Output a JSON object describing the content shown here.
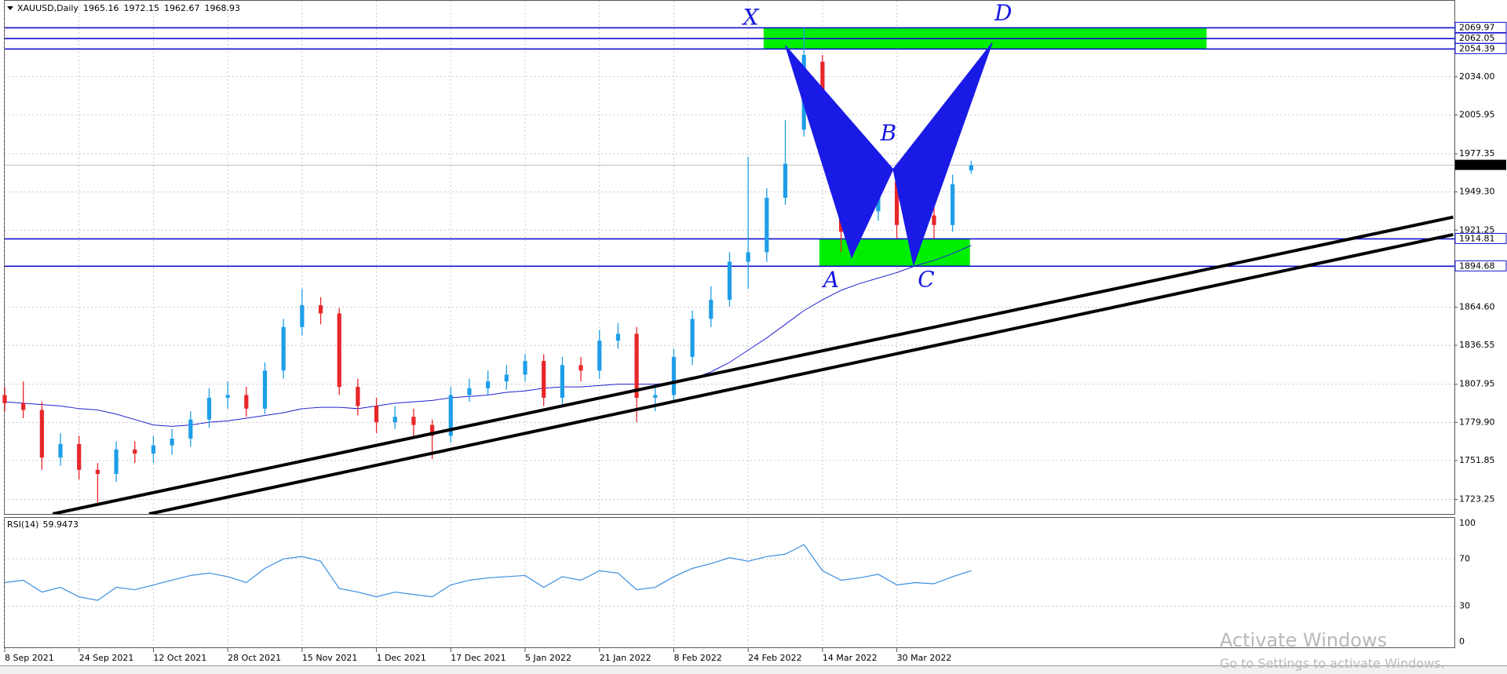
{
  "chart_data": [
    {
      "type": "candlestick",
      "title": "XAUUSD,Daily",
      "x": [
        0,
        3,
        6,
        9,
        12,
        15,
        18,
        21,
        24,
        27,
        30,
        33,
        36,
        39,
        42,
        45,
        48,
        51,
        54,
        57,
        60,
        63,
        66,
        69,
        72,
        75,
        78,
        81,
        84,
        87,
        90,
        93,
        96,
        99,
        102,
        105,
        108,
        111,
        114,
        117,
        120,
        123,
        126,
        129,
        132,
        135,
        138,
        141,
        144,
        147,
        150,
        153,
        156
      ],
      "open": [
        1800,
        1794,
        1789,
        1754,
        1764,
        1745,
        1742,
        1760,
        1757,
        1763,
        1768,
        1782,
        1798,
        1800,
        1790,
        1818,
        1850,
        1866,
        1860,
        1806,
        1792,
        1780,
        1784,
        1778,
        1770,
        1800,
        1805,
        1810,
        1815,
        1825,
        1798,
        1822,
        1818,
        1840,
        1845,
        1798,
        1800,
        1828,
        1856,
        1870,
        1898,
        1905,
        1945,
        1995,
        2045,
        1998,
        1920,
        1935,
        1957,
        1925,
        1932,
        1925,
        1965.16
      ],
      "high": [
        1806,
        1810,
        1795,
        1772,
        1770,
        1750,
        1766,
        1766,
        1770,
        1775,
        1788,
        1805,
        1810,
        1806,
        1824,
        1856,
        1878,
        1872,
        1864,
        1812,
        1798,
        1792,
        1790,
        1782,
        1806,
        1812,
        1818,
        1822,
        1830,
        1830,
        1828,
        1828,
        1848,
        1853,
        1850,
        1808,
        1834,
        1862,
        1880,
        1905,
        1975,
        1952,
        2002,
        2070,
        2050,
        2002,
        1948,
        1966,
        1962,
        1940,
        1938,
        1962,
        1972.15
      ],
      "low": [
        1788,
        1783,
        1745,
        1748,
        1738,
        1721,
        1736,
        1750,
        1750,
        1756,
        1762,
        1776,
        1790,
        1784,
        1786,
        1812,
        1844,
        1852,
        1800,
        1785,
        1772,
        1775,
        1770,
        1753,
        1765,
        1795,
        1800,
        1804,
        1810,
        1792,
        1792,
        1810,
        1812,
        1834,
        1780,
        1788,
        1796,
        1822,
        1850,
        1865,
        1878,
        1898,
        1940,
        1990,
        1985,
        1905,
        1912,
        1928,
        1915,
        1915,
        1915,
        1920,
        1962.67
      ],
      "close": [
        1794,
        1789,
        1754,
        1764,
        1745,
        1742,
        1760,
        1757,
        1763,
        1768,
        1782,
        1798,
        1800,
        1790,
        1818,
        1850,
        1866,
        1860,
        1806,
        1792,
        1780,
        1784,
        1778,
        1770,
        1800,
        1805,
        1810,
        1815,
        1825,
        1798,
        1822,
        1818,
        1840,
        1845,
        1798,
        1800,
        1828,
        1856,
        1870,
        1898,
        1905,
        1945,
        1970,
        2050,
        1998,
        1920,
        1935,
        1957,
        1925,
        1932,
        1925,
        1955,
        1968.93
      ],
      "up_color": "#1e9ee8",
      "down_color": "#e8262a",
      "ma": {
        "color": "#2020d0",
        "values": [
          1795,
          1794,
          1793,
          1792,
          1790,
          1789,
          1786,
          1782,
          1778,
          1777,
          1778,
          1780,
          1781,
          1783,
          1785,
          1787,
          1790,
          1791,
          1791,
          1790,
          1792,
          1794,
          1795,
          1796,
          1798,
          1799,
          1800,
          1802,
          1803,
          1805,
          1806,
          1806,
          1807,
          1808,
          1808,
          1808,
          1809,
          1812,
          1817,
          1824,
          1833,
          1842,
          1852,
          1862,
          1870,
          1877,
          1882,
          1886,
          1890,
          1895,
          1899,
          1904,
          1910
        ]
      },
      "xlim": [
        0,
        234
      ],
      "ylim": [
        1712.6,
        2090.4
      ],
      "xticks": [
        {
          "value": 0,
          "label": "8 Sep 2021"
        },
        {
          "value": 12,
          "label": "24 Sep 2021"
        },
        {
          "value": 24,
          "label": "12 Oct 2021"
        },
        {
          "value": 36,
          "label": "28 Oct 2021"
        },
        {
          "value": 48,
          "label": "15 Nov 2021"
        },
        {
          "value": 60,
          "label": "1 Dec 2021"
        },
        {
          "value": 72,
          "label": "17 Dec 2021"
        },
        {
          "value": 84,
          "label": "5 Jan 2022"
        },
        {
          "value": 96,
          "label": "21 Jan 2022"
        },
        {
          "value": 108,
          "label": "8 Feb 2022"
        },
        {
          "value": 120,
          "label": "24 Feb 2022"
        },
        {
          "value": 132,
          "label": "14 Mar 2022"
        },
        {
          "value": 144,
          "label": "30 Mar 2022"
        }
      ],
      "yticks": [
        {
          "value": 2034,
          "label": "2034.00"
        },
        2005.95,
        1977.35,
        {
          "value": 1949.3,
          "label": "1949.30"
        },
        1921.25,
        {
          "value": 1864.6,
          "label": "1864.60"
        },
        1836.55,
        1807.95,
        {
          "value": 1779.9,
          "label": "1779.90"
        },
        1751.85,
        1723.25
      ],
      "grid": true,
      "levels": [
        2069.97,
        2062.05,
        2054.39,
        1914.81,
        1894.68
      ],
      "level_color": "#1010d0",
      "current_price": 1968.93,
      "zones": [
        {
          "x": [
            122.5,
            194
          ],
          "y": [
            2054.39,
            2069.97
          ]
        },
        {
          "x": [
            131.5,
            155.8
          ],
          "y": [
            1894.68,
            1914.81
          ]
        }
      ],
      "zone_color": "#00ee00",
      "pattern": {
        "color": "#1a1ae6",
        "points": [
          {
            "label": "X",
            "x": 126,
            "y": 2057
          },
          {
            "label": "A",
            "x": 136.7,
            "y": 1901
          },
          {
            "label": "B",
            "x": 143.4,
            "y": 1966
          },
          {
            "label": "C",
            "x": 146.7,
            "y": 1895.5
          },
          {
            "label": "D",
            "x": 159.4,
            "y": 2059
          }
        ]
      },
      "trendlines": [
        {
          "x": [
            7.75,
            233.8
          ],
          "y": [
            1712.6,
            1930.8
          ]
        },
        {
          "x": [
            23.3,
            233.8
          ],
          "y": [
            1712.6,
            1918
          ]
        }
      ]
    },
    {
      "type": "line",
      "title": "RSI(14)",
      "value": 59.9473,
      "color": "#3a8ee0",
      "x": [
        0,
        3,
        6,
        9,
        12,
        15,
        18,
        21,
        24,
        27,
        30,
        33,
        36,
        39,
        42,
        45,
        48,
        51,
        54,
        57,
        60,
        63,
        66,
        69,
        72,
        75,
        78,
        81,
        84,
        87,
        90,
        93,
        96,
        99,
        102,
        105,
        108,
        111,
        114,
        117,
        120,
        123,
        126,
        129,
        132,
        135,
        138,
        141,
        144,
        147,
        150,
        153,
        156
      ],
      "values": [
        50,
        52,
        42,
        46,
        38,
        35,
        46,
        44,
        48,
        52,
        56,
        58,
        55,
        50,
        62,
        70,
        72,
        68,
        45,
        42,
        38,
        42,
        40,
        38,
        48,
        52,
        54,
        55,
        56,
        46,
        55,
        52,
        60,
        58,
        44,
        46,
        55,
        62,
        66,
        71,
        68,
        72,
        74,
        82,
        60,
        52,
        54,
        57,
        48,
        50,
        49,
        55,
        60
      ],
      "xlim": [
        0,
        234
      ],
      "ylim": [
        0,
        100
      ],
      "yticks": [
        0,
        30,
        70,
        100
      ]
    }
  ],
  "watermark": {
    "title": "Activate Windows",
    "subtitle": "Go to Settings to activate Windows."
  }
}
